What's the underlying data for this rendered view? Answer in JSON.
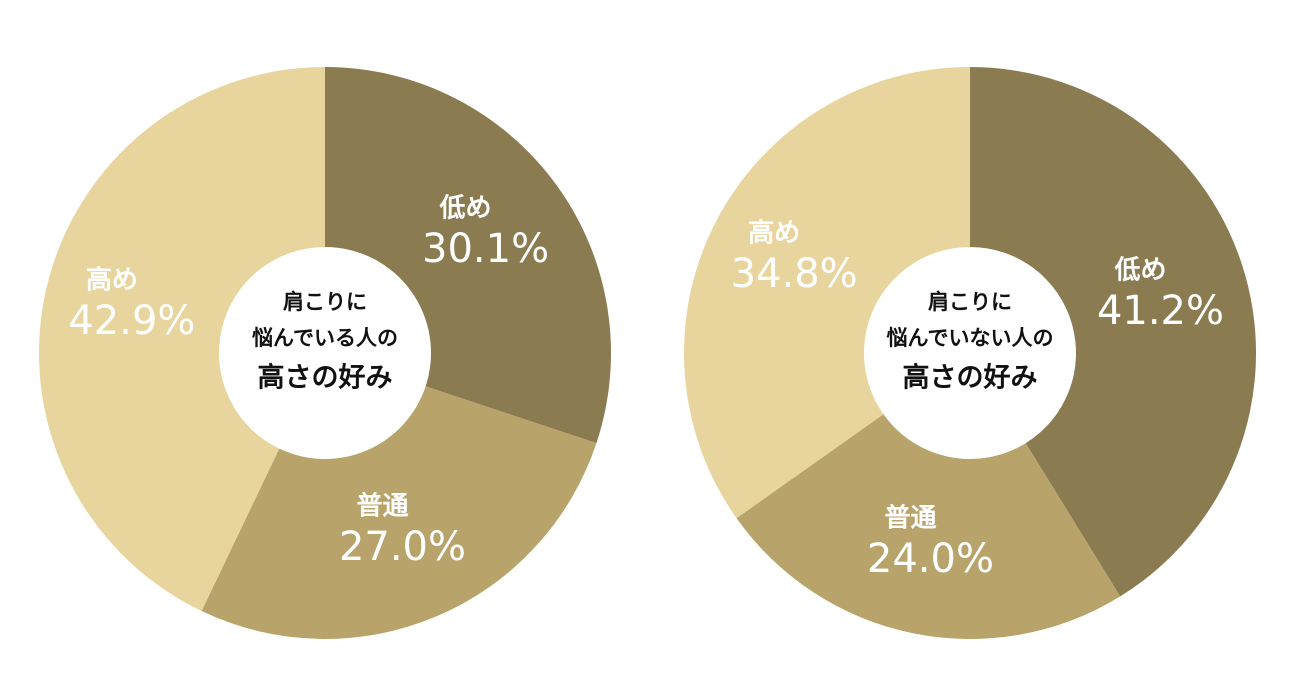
{
  "chart_data": [
    {
      "type": "donut",
      "center_text": [
        "肩こりに",
        "悩んでいる人の",
        "高さの好み"
      ],
      "categories": [
        "低め",
        "普通",
        "高め"
      ],
      "values": [
        30.1,
        27.0,
        42.9
      ],
      "value_labels": [
        "30.1%",
        "27.0%",
        "42.9%"
      ],
      "colors": [
        "#8b7b50",
        "#b8a36a",
        "#e8d49d"
      ]
    },
    {
      "type": "donut",
      "center_text": [
        "肩こりに",
        "悩んでいない人の",
        "高さの好み"
      ],
      "categories": [
        "低め",
        "普通",
        "高め"
      ],
      "values": [
        41.2,
        24.0,
        34.8
      ],
      "value_labels": [
        "41.2%",
        "24.0%",
        "34.8%"
      ],
      "colors": [
        "#8b7b50",
        "#b8a36a",
        "#e8d49d"
      ]
    }
  ]
}
